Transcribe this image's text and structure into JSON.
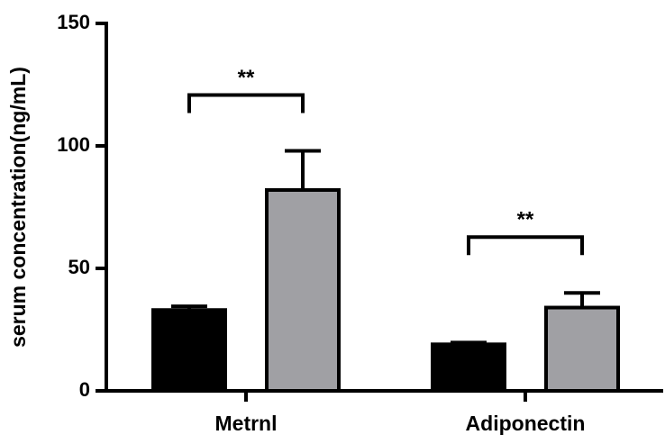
{
  "chart_data": {
    "type": "bar",
    "ylabel": "serum concentration(ng/mL)",
    "categories": [
      "Metrnl",
      "Adiponectin"
    ],
    "series": [
      {
        "color": "#000000",
        "values": [
          33,
          19
        ],
        "errors": [
          1.5,
          0.7
        ]
      },
      {
        "color": "#a0a0a4",
        "values": [
          82,
          34
        ],
        "errors": [
          16,
          6
        ]
      }
    ],
    "annotations": [
      "**",
      "**"
    ],
    "ylim": [
      0,
      150
    ],
    "yticks": [
      0,
      50,
      100,
      150
    ],
    "grid": false
  }
}
